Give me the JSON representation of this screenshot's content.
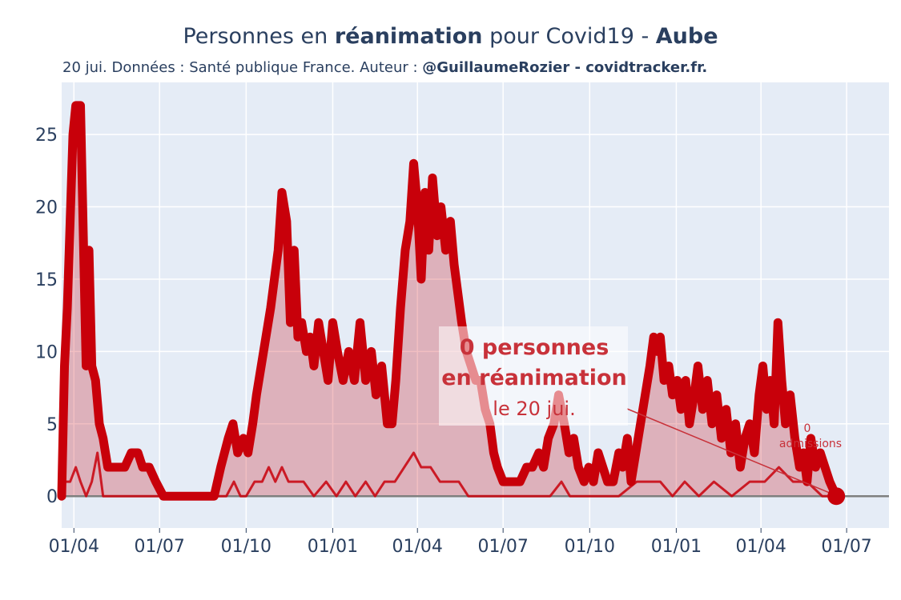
{
  "header": {
    "title_pre": "Personnes en ",
    "title_bold1": "réanimation",
    "title_mid": " pour Covid19 - ",
    "title_bold2": "Aube",
    "subtitle_pre": "20 jui. Données : Santé publique France. Auteur : ",
    "subtitle_bold": "@GuillaumeRozier - covidtracker.fr."
  },
  "annotation": {
    "line1": "0 personnes",
    "line2": "en réanimation",
    "line3": "le 20 jui.",
    "admissions_line1": "0",
    "admissions_line2": "admissions"
  },
  "colors": {
    "main": "#c8000a",
    "fill": "rgba(200,0,10,0.25)",
    "plot_bg": "#e5ecf6",
    "grid": "#ffffff",
    "zero_line": "#7f7f7f",
    "annotation_bg": "rgba(255,255,255,0.55)",
    "annotation_text": "#c8323a"
  },
  "chart_data": {
    "type": "area",
    "x_ticks": [
      "01/04",
      "01/07",
      "01/10",
      "01/01",
      "01/04",
      "01/07",
      "01/10",
      "01/01",
      "01/04",
      "01/07"
    ],
    "x_tick_dates": [
      "2020-04-01",
      "2020-07-01",
      "2020-10-01",
      "2021-01-01",
      "2021-04-01",
      "2021-07-01",
      "2021-10-01",
      "2022-01-01",
      "2022-04-01",
      "2022-07-01"
    ],
    "x_range": [
      "2020-03-19",
      "2022-08-15"
    ],
    "y_ticks": [
      0,
      5,
      10,
      15,
      20,
      25
    ],
    "ylim": [
      -2.2,
      28.6
    ],
    "grid": true,
    "series": [
      {
        "name": "réanimations",
        "style": "thick-line-with-fill",
        "points": [
          [
            "2020-03-19",
            0
          ],
          [
            "2020-03-22",
            9
          ],
          [
            "2020-03-25",
            13
          ],
          [
            "2020-03-28",
            19
          ],
          [
            "2020-03-31",
            25
          ],
          [
            "2020-04-03",
            27
          ],
          [
            "2020-04-08",
            27
          ],
          [
            "2020-04-11",
            18
          ],
          [
            "2020-04-14",
            9
          ],
          [
            "2020-04-17",
            17
          ],
          [
            "2020-04-20",
            9
          ],
          [
            "2020-04-24",
            8
          ],
          [
            "2020-04-28",
            5
          ],
          [
            "2020-05-02",
            4
          ],
          [
            "2020-05-07",
            2
          ],
          [
            "2020-05-15",
            2
          ],
          [
            "2020-05-25",
            2
          ],
          [
            "2020-06-01",
            3
          ],
          [
            "2020-06-08",
            3
          ],
          [
            "2020-06-13",
            2
          ],
          [
            "2020-06-20",
            2
          ],
          [
            "2020-06-27",
            1
          ],
          [
            "2020-07-05",
            0
          ],
          [
            "2020-08-01",
            0
          ],
          [
            "2020-08-28",
            0
          ],
          [
            "2020-09-04",
            2
          ],
          [
            "2020-09-12",
            4
          ],
          [
            "2020-09-17",
            5
          ],
          [
            "2020-09-22",
            3
          ],
          [
            "2020-09-28",
            4
          ],
          [
            "2020-10-03",
            3
          ],
          [
            "2020-10-08",
            5
          ],
          [
            "2020-10-12",
            7
          ],
          [
            "2020-10-17",
            9
          ],
          [
            "2020-10-22",
            11
          ],
          [
            "2020-10-27",
            13
          ],
          [
            "2020-10-31",
            15
          ],
          [
            "2020-11-04",
            17
          ],
          [
            "2020-11-08",
            21
          ],
          [
            "2020-11-13",
            19
          ],
          [
            "2020-11-17",
            12
          ],
          [
            "2020-11-21",
            17
          ],
          [
            "2020-11-25",
            11
          ],
          [
            "2020-11-29",
            12
          ],
          [
            "2020-12-04",
            10
          ],
          [
            "2020-12-08",
            11
          ],
          [
            "2020-12-12",
            9
          ],
          [
            "2020-12-17",
            12
          ],
          [
            "2020-12-22",
            10
          ],
          [
            "2020-12-27",
            8
          ],
          [
            "2021-01-01",
            12
          ],
          [
            "2021-01-06",
            10
          ],
          [
            "2021-01-12",
            8
          ],
          [
            "2021-01-18",
            10
          ],
          [
            "2021-01-24",
            8
          ],
          [
            "2021-01-30",
            12
          ],
          [
            "2021-02-05",
            8
          ],
          [
            "2021-02-11",
            10
          ],
          [
            "2021-02-16",
            7
          ],
          [
            "2021-02-22",
            9
          ],
          [
            "2021-02-28",
            5
          ],
          [
            "2021-03-05",
            5
          ],
          [
            "2021-03-09",
            8
          ],
          [
            "2021-03-14",
            13
          ],
          [
            "2021-03-19",
            17
          ],
          [
            "2021-03-24",
            19
          ],
          [
            "2021-03-28",
            23
          ],
          [
            "2021-04-01",
            20
          ],
          [
            "2021-04-05",
            15
          ],
          [
            "2021-04-09",
            21
          ],
          [
            "2021-04-13",
            17
          ],
          [
            "2021-04-17",
            22
          ],
          [
            "2021-04-22",
            18
          ],
          [
            "2021-04-26",
            20
          ],
          [
            "2021-05-01",
            17
          ],
          [
            "2021-05-06",
            19
          ],
          [
            "2021-05-10",
            16
          ],
          [
            "2021-05-14",
            14
          ],
          [
            "2021-05-18",
            12
          ],
          [
            "2021-05-23",
            10
          ],
          [
            "2021-05-28",
            9
          ],
          [
            "2021-06-02",
            8
          ],
          [
            "2021-06-07",
            8
          ],
          [
            "2021-06-12",
            6
          ],
          [
            "2021-06-17",
            5
          ],
          [
            "2021-06-21",
            3
          ],
          [
            "2021-06-25",
            2
          ],
          [
            "2021-07-01",
            1
          ],
          [
            "2021-07-10",
            1
          ],
          [
            "2021-07-19",
            1
          ],
          [
            "2021-07-26",
            2
          ],
          [
            "2021-08-01",
            2
          ],
          [
            "2021-08-08",
            3
          ],
          [
            "2021-08-13",
            2
          ],
          [
            "2021-08-18",
            4
          ],
          [
            "2021-08-24",
            5
          ],
          [
            "2021-08-29",
            7
          ],
          [
            "2021-09-04",
            5
          ],
          [
            "2021-09-09",
            3
          ],
          [
            "2021-09-14",
            4
          ],
          [
            "2021-09-19",
            2
          ],
          [
            "2021-09-25",
            1
          ],
          [
            "2021-09-30",
            2
          ],
          [
            "2021-10-05",
            1
          ],
          [
            "2021-10-10",
            3
          ],
          [
            "2021-10-15",
            2
          ],
          [
            "2021-10-20",
            1
          ],
          [
            "2021-10-26",
            1
          ],
          [
            "2021-11-01",
            3
          ],
          [
            "2021-11-05",
            2
          ],
          [
            "2021-11-10",
            4
          ],
          [
            "2021-11-14",
            1
          ],
          [
            "2021-11-19",
            3
          ],
          [
            "2021-11-24",
            5
          ],
          [
            "2021-11-29",
            7
          ],
          [
            "2021-12-04",
            9
          ],
          [
            "2021-12-08",
            11
          ],
          [
            "2021-12-12",
            10
          ],
          [
            "2021-12-15",
            11
          ],
          [
            "2021-12-19",
            8
          ],
          [
            "2021-12-24",
            9
          ],
          [
            "2021-12-28",
            7
          ],
          [
            "2022-01-02",
            8
          ],
          [
            "2022-01-06",
            6
          ],
          [
            "2022-01-11",
            8
          ],
          [
            "2022-01-15",
            5
          ],
          [
            "2022-01-20",
            7
          ],
          [
            "2022-01-24",
            9
          ],
          [
            "2022-01-29",
            6
          ],
          [
            "2022-02-03",
            8
          ],
          [
            "2022-02-08",
            5
          ],
          [
            "2022-02-13",
            7
          ],
          [
            "2022-02-18",
            4
          ],
          [
            "2022-02-23",
            6
          ],
          [
            "2022-02-28",
            3
          ],
          [
            "2022-03-05",
            5
          ],
          [
            "2022-03-10",
            2
          ],
          [
            "2022-03-15",
            4
          ],
          [
            "2022-03-20",
            5
          ],
          [
            "2022-03-25",
            3
          ],
          [
            "2022-03-30",
            7
          ],
          [
            "2022-04-03",
            9
          ],
          [
            "2022-04-07",
            6
          ],
          [
            "2022-04-11",
            8
          ],
          [
            "2022-04-15",
            5
          ],
          [
            "2022-04-19",
            12
          ],
          [
            "2022-04-23",
            8
          ],
          [
            "2022-04-27",
            5
          ],
          [
            "2022-05-02",
            7
          ],
          [
            "2022-05-07",
            4
          ],
          [
            "2022-05-12",
            2
          ],
          [
            "2022-05-16",
            3
          ],
          [
            "2022-05-20",
            1
          ],
          [
            "2022-05-24",
            4
          ],
          [
            "2022-05-29",
            2
          ],
          [
            "2022-06-03",
            3
          ],
          [
            "2022-06-08",
            2
          ],
          [
            "2022-06-13",
            1
          ],
          [
            "2022-06-20",
            0
          ]
        ]
      },
      {
        "name": "admissions",
        "style": "thin-line",
        "points": [
          [
            "2020-03-19",
            1
          ],
          [
            "2020-03-28",
            1
          ],
          [
            "2020-04-03",
            2
          ],
          [
            "2020-04-08",
            1
          ],
          [
            "2020-04-14",
            0
          ],
          [
            "2020-04-20",
            1
          ],
          [
            "2020-04-26",
            3
          ],
          [
            "2020-05-02",
            0
          ],
          [
            "2020-06-15",
            0
          ],
          [
            "2020-08-28",
            0
          ],
          [
            "2020-09-10",
            0
          ],
          [
            "2020-09-18",
            1
          ],
          [
            "2020-09-25",
            0
          ],
          [
            "2020-10-01",
            0
          ],
          [
            "2020-10-10",
            1
          ],
          [
            "2020-10-18",
            1
          ],
          [
            "2020-10-25",
            2
          ],
          [
            "2020-11-01",
            1
          ],
          [
            "2020-11-08",
            2
          ],
          [
            "2020-11-15",
            1
          ],
          [
            "2020-11-22",
            1
          ],
          [
            "2020-12-01",
            1
          ],
          [
            "2020-12-12",
            0
          ],
          [
            "2020-12-25",
            1
          ],
          [
            "2021-01-05",
            0
          ],
          [
            "2021-01-15",
            1
          ],
          [
            "2021-01-25",
            0
          ],
          [
            "2021-02-05",
            1
          ],
          [
            "2021-02-15",
            0
          ],
          [
            "2021-02-25",
            1
          ],
          [
            "2021-03-08",
            1
          ],
          [
            "2021-03-18",
            2
          ],
          [
            "2021-03-28",
            3
          ],
          [
            "2021-04-05",
            2
          ],
          [
            "2021-04-15",
            2
          ],
          [
            "2021-04-25",
            1
          ],
          [
            "2021-05-05",
            1
          ],
          [
            "2021-05-15",
            1
          ],
          [
            "2021-05-25",
            0
          ],
          [
            "2021-06-10",
            0
          ],
          [
            "2021-07-15",
            0
          ],
          [
            "2021-08-20",
            0
          ],
          [
            "2021-09-01",
            1
          ],
          [
            "2021-09-10",
            0
          ],
          [
            "2021-10-01",
            0
          ],
          [
            "2021-11-01",
            0
          ],
          [
            "2021-11-20",
            1
          ],
          [
            "2021-12-05",
            1
          ],
          [
            "2021-12-15",
            1
          ],
          [
            "2021-12-28",
            0
          ],
          [
            "2022-01-10",
            1
          ],
          [
            "2022-01-25",
            0
          ],
          [
            "2022-02-10",
            1
          ],
          [
            "2022-03-01",
            0
          ],
          [
            "2022-03-20",
            1
          ],
          [
            "2022-04-05",
            1
          ],
          [
            "2022-04-20",
            2
          ],
          [
            "2022-05-05",
            1
          ],
          [
            "2022-05-20",
            1
          ],
          [
            "2022-06-05",
            0
          ],
          [
            "2022-06-20",
            0
          ]
        ]
      }
    ],
    "last_point": [
      "2022-06-20",
      0
    ]
  }
}
